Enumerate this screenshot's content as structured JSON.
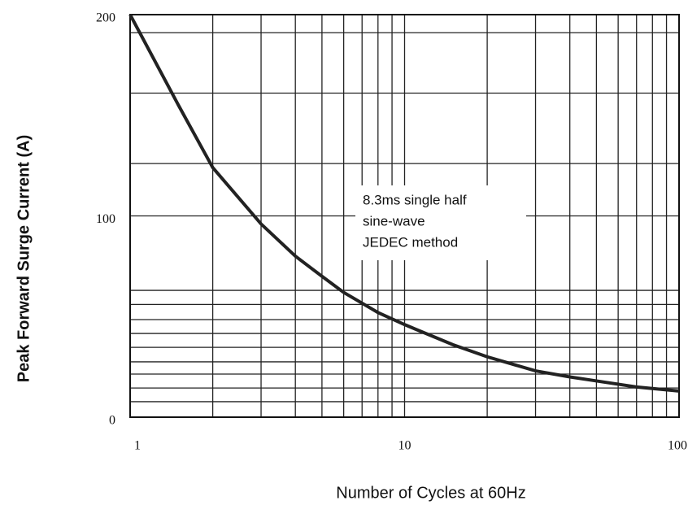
{
  "chart_data": {
    "type": "line",
    "xlabel": "Number of Cycles at 60Hz",
    "ylabel": "Peak Forward Surge Current (A)",
    "annotation": [
      "8.3ms single half",
      "sine-wave",
      "JEDEC method"
    ],
    "x": [
      1,
      1.5,
      2,
      3,
      4,
      5,
      6,
      8,
      10,
      15,
      20,
      30,
      40,
      50,
      70,
      100
    ],
    "series": [
      {
        "name": "Peak forward surge current",
        "color": "#222222",
        "values": [
          200,
          155,
          124,
          96,
          80,
          70,
          62,
          52,
          46,
          36,
          30,
          23,
          20,
          18,
          15,
          13
        ]
      }
    ],
    "xlim": [
      1,
      100
    ],
    "xticks": [
      1,
      10,
      100
    ],
    "xscale": "log",
    "ylim": [
      0,
      200
    ],
    "yticks": [
      0,
      100,
      200
    ],
    "xgrid": [
      2,
      3,
      4,
      5,
      6,
      7,
      8,
      9,
      10,
      20,
      30,
      40,
      50,
      60,
      70,
      80,
      90
    ],
    "ygrid": [
      191,
      161,
      126,
      100,
      63,
      56,
      48.5,
      41.6,
      34.7,
      27.5,
      21.4,
      14.5,
      7.7
    ],
    "grid": true
  }
}
